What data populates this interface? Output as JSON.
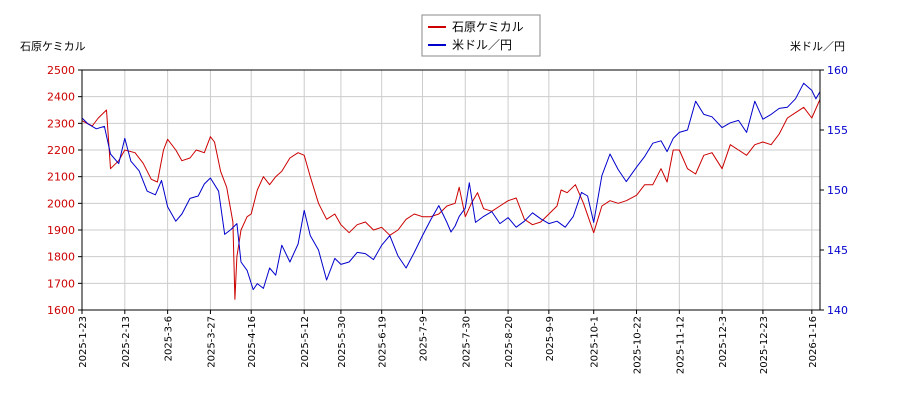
{
  "chart_data": {
    "type": "line",
    "left_axis_label": "石原ケミカル",
    "right_axis_label": "米ドル／円",
    "legend_position": "top-center",
    "grid": true,
    "x_ticks": [
      "2025-1-23",
      "2025-2-13",
      "2025-3-6",
      "2025-3-27",
      "2025-4-16",
      "2025-5-12",
      "2025-5-30",
      "2025-6-19",
      "2025-7-9",
      "2025-7-30",
      "2025-8-20",
      "2025-9-9",
      "2025-10-1",
      "2025-10-22",
      "2025-11-12",
      "2025-12-3",
      "2025-12-23",
      "2026-1-16"
    ],
    "y_left": {
      "min": 1600,
      "max": 2500,
      "ticks": [
        1600,
        1700,
        1800,
        1900,
        2000,
        2100,
        2200,
        2300,
        2400,
        2500
      ]
    },
    "y_right": {
      "min": 140,
      "max": 160,
      "ticks": [
        140,
        145,
        150,
        155,
        160
      ]
    },
    "series": [
      {
        "name": "石原ケミカル",
        "axis": "left",
        "color": "#cc0000",
        "points": [
          [
            "2025-1-23",
            2310
          ],
          [
            "2025-1-28",
            2290
          ],
          [
            "2025-1-31",
            2320
          ],
          [
            "2025-2-4",
            2350
          ],
          [
            "2025-2-6",
            2130
          ],
          [
            "2025-2-10",
            2160
          ],
          [
            "2025-2-13",
            2200
          ],
          [
            "2025-2-18",
            2190
          ],
          [
            "2025-2-22",
            2150
          ],
          [
            "2025-2-26",
            2090
          ],
          [
            "2025-3-1",
            2080
          ],
          [
            "2025-3-4",
            2200
          ],
          [
            "2025-3-6",
            2240
          ],
          [
            "2025-3-10",
            2200
          ],
          [
            "2025-3-13",
            2160
          ],
          [
            "2025-3-17",
            2170
          ],
          [
            "2025-3-20",
            2200
          ],
          [
            "2025-3-24",
            2190
          ],
          [
            "2025-3-27",
            2250
          ],
          [
            "2025-3-29",
            2230
          ],
          [
            "2025-4-1",
            2120
          ],
          [
            "2025-4-4",
            2060
          ],
          [
            "2025-4-7",
            1930
          ],
          [
            "2025-4-8",
            1640
          ],
          [
            "2025-4-9",
            1800
          ],
          [
            "2025-4-11",
            1900
          ],
          [
            "2025-4-14",
            1950
          ],
          [
            "2025-4-16",
            1960
          ],
          [
            "2025-4-19",
            2050
          ],
          [
            "2025-4-22",
            2100
          ],
          [
            "2025-4-25",
            2070
          ],
          [
            "2025-4-28",
            2100
          ],
          [
            "2025-5-1",
            2120
          ],
          [
            "2025-5-5",
            2170
          ],
          [
            "2025-5-9",
            2190
          ],
          [
            "2025-5-12",
            2180
          ],
          [
            "2025-5-15",
            2100
          ],
          [
            "2025-5-19",
            2000
          ],
          [
            "2025-5-23",
            1940
          ],
          [
            "2025-5-27",
            1960
          ],
          [
            "2025-5-30",
            1920
          ],
          [
            "2025-6-3",
            1890
          ],
          [
            "2025-6-7",
            1920
          ],
          [
            "2025-6-11",
            1930
          ],
          [
            "2025-6-15",
            1900
          ],
          [
            "2025-6-19",
            1910
          ],
          [
            "2025-6-23",
            1880
          ],
          [
            "2025-6-27",
            1900
          ],
          [
            "2025-7-1",
            1940
          ],
          [
            "2025-7-5",
            1960
          ],
          [
            "2025-7-9",
            1950
          ],
          [
            "2025-7-13",
            1950
          ],
          [
            "2025-7-17",
            1960
          ],
          [
            "2025-7-21",
            1990
          ],
          [
            "2025-7-25",
            2000
          ],
          [
            "2025-7-27",
            2060
          ],
          [
            "2025-7-30",
            1950
          ],
          [
            "2025-8-2",
            2000
          ],
          [
            "2025-8-5",
            2040
          ],
          [
            "2025-8-8",
            1980
          ],
          [
            "2025-8-12",
            1970
          ],
          [
            "2025-8-16",
            1990
          ],
          [
            "2025-8-20",
            2010
          ],
          [
            "2025-8-24",
            2020
          ],
          [
            "2025-8-28",
            1940
          ],
          [
            "2025-9-1",
            1920
          ],
          [
            "2025-9-5",
            1930
          ],
          [
            "2025-9-9",
            1960
          ],
          [
            "2025-9-13",
            1990
          ],
          [
            "2025-9-15",
            2050
          ],
          [
            "2025-9-18",
            2040
          ],
          [
            "2025-9-22",
            2070
          ],
          [
            "2025-9-26",
            2000
          ],
          [
            "2025-10-1",
            1890
          ],
          [
            "2025-10-5",
            1990
          ],
          [
            "2025-10-9",
            2010
          ],
          [
            "2025-10-13",
            2000
          ],
          [
            "2025-10-17",
            2010
          ],
          [
            "2025-10-22",
            2030
          ],
          [
            "2025-10-26",
            2070
          ],
          [
            "2025-10-30",
            2070
          ],
          [
            "2025-11-3",
            2130
          ],
          [
            "2025-11-6",
            2080
          ],
          [
            "2025-11-9",
            2200
          ],
          [
            "2025-11-12",
            2200
          ],
          [
            "2025-11-16",
            2130
          ],
          [
            "2025-11-20",
            2110
          ],
          [
            "2025-11-24",
            2180
          ],
          [
            "2025-11-28",
            2190
          ],
          [
            "2025-12-3",
            2130
          ],
          [
            "2025-12-7",
            2220
          ],
          [
            "2025-12-11",
            2200
          ],
          [
            "2025-12-15",
            2180
          ],
          [
            "2025-12-19",
            2220
          ],
          [
            "2025-12-23",
            2230
          ],
          [
            "2025-12-27",
            2220
          ],
          [
            "2025-12-31",
            2260
          ],
          [
            "2026-1-4",
            2320
          ],
          [
            "2026-1-8",
            2340
          ],
          [
            "2026-1-12",
            2360
          ],
          [
            "2026-1-16",
            2320
          ],
          [
            "2026-1-20",
            2390
          ]
        ]
      },
      {
        "name": "米ドル／円",
        "axis": "right",
        "color": "#0000cc",
        "points": [
          [
            "2025-1-23",
            156.0
          ],
          [
            "2025-1-26",
            155.5
          ],
          [
            "2025-1-30",
            155.1
          ],
          [
            "2025-2-3",
            155.3
          ],
          [
            "2025-2-6",
            153.0
          ],
          [
            "2025-2-10",
            152.2
          ],
          [
            "2025-2-13",
            154.3
          ],
          [
            "2025-2-16",
            152.4
          ],
          [
            "2025-2-20",
            151.6
          ],
          [
            "2025-2-24",
            149.9
          ],
          [
            "2025-2-28",
            149.6
          ],
          [
            "2025-3-3",
            150.8
          ],
          [
            "2025-3-6",
            148.6
          ],
          [
            "2025-3-10",
            147.4
          ],
          [
            "2025-3-13",
            148.0
          ],
          [
            "2025-3-17",
            149.3
          ],
          [
            "2025-3-21",
            149.5
          ],
          [
            "2025-3-24",
            150.5
          ],
          [
            "2025-3-27",
            151.0
          ],
          [
            "2025-3-31",
            149.9
          ],
          [
            "2025-4-3",
            146.3
          ],
          [
            "2025-4-6",
            146.7
          ],
          [
            "2025-4-9",
            147.2
          ],
          [
            "2025-4-11",
            144.0
          ],
          [
            "2025-4-14",
            143.3
          ],
          [
            "2025-4-17",
            141.7
          ],
          [
            "2025-4-19",
            142.2
          ],
          [
            "2025-4-22",
            141.8
          ],
          [
            "2025-4-25",
            143.5
          ],
          [
            "2025-4-28",
            142.9
          ],
          [
            "2025-5-1",
            145.4
          ],
          [
            "2025-5-5",
            144.0
          ],
          [
            "2025-5-9",
            145.5
          ],
          [
            "2025-5-12",
            148.3
          ],
          [
            "2025-5-15",
            146.2
          ],
          [
            "2025-5-19",
            145.0
          ],
          [
            "2025-5-23",
            142.5
          ],
          [
            "2025-5-27",
            144.3
          ],
          [
            "2025-5-30",
            143.8
          ],
          [
            "2025-6-3",
            144.0
          ],
          [
            "2025-6-7",
            144.8
          ],
          [
            "2025-6-11",
            144.7
          ],
          [
            "2025-6-15",
            144.2
          ],
          [
            "2025-6-19",
            145.4
          ],
          [
            "2025-6-23",
            146.2
          ],
          [
            "2025-6-27",
            144.5
          ],
          [
            "2025-7-1",
            143.5
          ],
          [
            "2025-7-5",
            144.8
          ],
          [
            "2025-7-9",
            146.2
          ],
          [
            "2025-7-13",
            147.5
          ],
          [
            "2025-7-17",
            148.7
          ],
          [
            "2025-7-21",
            147.3
          ],
          [
            "2025-7-23",
            146.5
          ],
          [
            "2025-7-25",
            147.0
          ],
          [
            "2025-7-27",
            147.8
          ],
          [
            "2025-7-30",
            148.5
          ],
          [
            "2025-8-1",
            150.6
          ],
          [
            "2025-8-4",
            147.3
          ],
          [
            "2025-8-8",
            147.8
          ],
          [
            "2025-8-12",
            148.2
          ],
          [
            "2025-8-16",
            147.2
          ],
          [
            "2025-8-20",
            147.7
          ],
          [
            "2025-8-24",
            146.9
          ],
          [
            "2025-8-28",
            147.4
          ],
          [
            "2025-9-1",
            148.1
          ],
          [
            "2025-9-5",
            147.6
          ],
          [
            "2025-9-9",
            147.2
          ],
          [
            "2025-9-13",
            147.4
          ],
          [
            "2025-9-17",
            146.9
          ],
          [
            "2025-9-21",
            147.8
          ],
          [
            "2025-9-25",
            149.8
          ],
          [
            "2025-9-28",
            149.5
          ],
          [
            "2025-10-1",
            147.3
          ],
          [
            "2025-10-5",
            151.2
          ],
          [
            "2025-10-9",
            153.0
          ],
          [
            "2025-10-13",
            151.7
          ],
          [
            "2025-10-17",
            150.7
          ],
          [
            "2025-10-22",
            151.9
          ],
          [
            "2025-10-26",
            152.8
          ],
          [
            "2025-10-30",
            153.9
          ],
          [
            "2025-11-3",
            154.1
          ],
          [
            "2025-11-6",
            153.2
          ],
          [
            "2025-11-9",
            154.3
          ],
          [
            "2025-11-12",
            154.8
          ],
          [
            "2025-11-16",
            155.0
          ],
          [
            "2025-11-20",
            157.4
          ],
          [
            "2025-11-24",
            156.3
          ],
          [
            "2025-11-28",
            156.1
          ],
          [
            "2025-12-3",
            155.2
          ],
          [
            "2025-12-7",
            155.6
          ],
          [
            "2025-12-11",
            155.8
          ],
          [
            "2025-12-15",
            154.8
          ],
          [
            "2025-12-19",
            157.4
          ],
          [
            "2025-12-23",
            155.9
          ],
          [
            "2025-12-27",
            156.3
          ],
          [
            "2025-12-31",
            156.8
          ],
          [
            "2026-1-4",
            156.9
          ],
          [
            "2026-1-8",
            157.6
          ],
          [
            "2026-1-12",
            158.9
          ],
          [
            "2026-1-16",
            158.3
          ],
          [
            "2026-1-18",
            157.6
          ],
          [
            "2026-1-20",
            158.2
          ]
        ]
      }
    ]
  }
}
